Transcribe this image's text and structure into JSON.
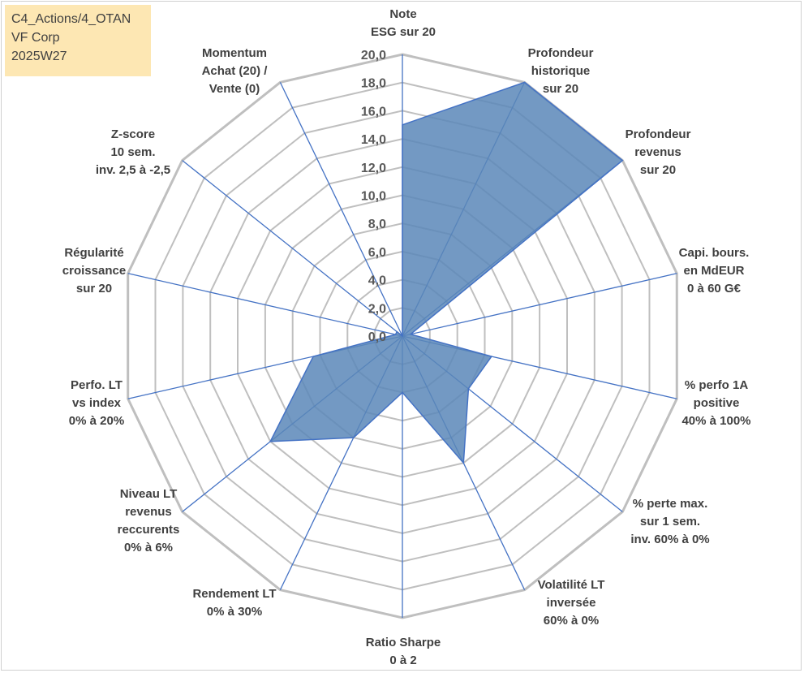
{
  "info_box": {
    "line1": "C4_Actions/4_OTAN",
    "line2": "VF Corp",
    "line3": "2025W27"
  },
  "colors": {
    "grid": "#bfbfbf",
    "spoke": "#4472c4",
    "fill": "#5b87b8",
    "stroke": "#4472c4",
    "info_bg": "#fde7b3"
  },
  "chart_data": {
    "type": "radar",
    "title": "",
    "rmin": 0,
    "rmax": 20,
    "tick_step": 2,
    "tick_labels": [
      "0,0",
      "2,0",
      "4,0",
      "6,0",
      "8,0",
      "10,0",
      "12,0",
      "14,0",
      "16,0",
      "18,0",
      "20,0"
    ],
    "axes": [
      {
        "label": [
          "Note",
          "ESG sur 20"
        ],
        "value": 15.0
      },
      {
        "label": [
          "Profondeur",
          "historique",
          "sur 20"
        ],
        "value": 20.0
      },
      {
        "label": [
          "Profondeur",
          "revenus",
          "sur 20"
        ],
        "value": 20.0
      },
      {
        "label": [
          "Capi. bours.",
          "en MdEUR",
          "0 à 60 G€"
        ],
        "value": 0.6
      },
      {
        "label": [
          "% perfo 1A",
          "positive",
          "40% à 100%"
        ],
        "value": 6.5
      },
      {
        "label": [
          "% perte max.",
          "sur 1 sem.",
          "inv. 60% à 0%"
        ],
        "value": 6.0
      },
      {
        "label": [
          "Volatilité LT",
          "inversée",
          "60% à 0%"
        ],
        "value": 10.0
      },
      {
        "label": [
          "Ratio Sharpe",
          "0 à 2"
        ],
        "value": 4.0
      },
      {
        "label": [
          "Rendement LT",
          "0% à 30%"
        ],
        "value": 8.0
      },
      {
        "label": [
          "Niveau LT",
          "revenus",
          "reccurents",
          "0% à 6%"
        ],
        "value": 12.0
      },
      {
        "label": [
          "Perfo. LT",
          "vs index",
          "0% à 20%"
        ],
        "value": 6.5
      },
      {
        "label": [
          "Régularité",
          "croissance",
          "sur 20"
        ],
        "value": 0.5
      },
      {
        "label": [
          "Z-score",
          "10 sem.",
          "inv. 2,5 à -2,5"
        ],
        "value": 0.5
      },
      {
        "label": [
          "Momentum",
          "Achat (20) /",
          "Vente (0)"
        ],
        "value": 0.0
      }
    ]
  }
}
